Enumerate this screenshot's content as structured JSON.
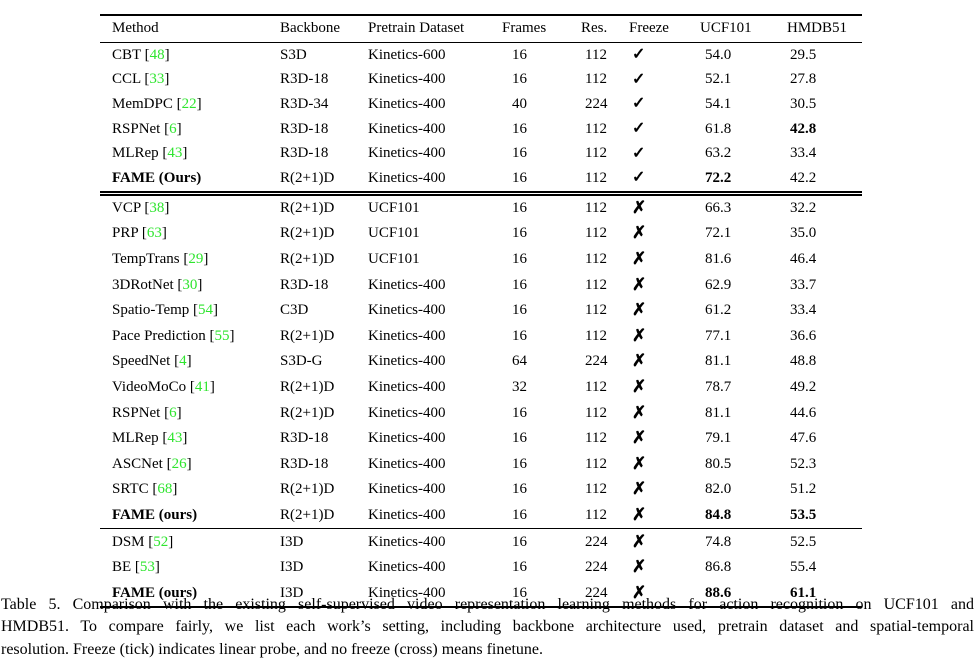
{
  "colors": {
    "citation_green": "#2ee52e",
    "text": "#000000",
    "rule": "#000000"
  },
  "table": {
    "columns": [
      "Method",
      "Backbone",
      "Pretrain Dataset",
      "Frames",
      "Res.",
      "Freeze",
      "UCF101",
      "HMDB51"
    ],
    "freeze_symbols": {
      "check": "✓",
      "cross": "✗"
    },
    "sections": [
      {
        "rows": [
          {
            "method": "CBT",
            "cite": "48",
            "method_bold": false,
            "backbone": "S3D",
            "pretrain": "Kinetics-600",
            "frames": "16",
            "res": "112",
            "freeze": "check",
            "ucf101": "54.0",
            "ucf101_bold": false,
            "hmdb51": "29.5",
            "hmdb51_bold": false
          },
          {
            "method": "CCL",
            "cite": "33",
            "method_bold": false,
            "backbone": "R3D-18",
            "pretrain": "Kinetics-400",
            "frames": "16",
            "res": "112",
            "freeze": "check",
            "ucf101": "52.1",
            "ucf101_bold": false,
            "hmdb51": "27.8",
            "hmdb51_bold": false
          },
          {
            "method": "MemDPC",
            "cite": "22",
            "method_bold": false,
            "backbone": "R3D-34",
            "pretrain": "Kinetics-400",
            "frames": "40",
            "res": "224",
            "freeze": "check",
            "ucf101": "54.1",
            "ucf101_bold": false,
            "hmdb51": "30.5",
            "hmdb51_bold": false
          },
          {
            "method": "RSPNet",
            "cite": "6",
            "method_bold": false,
            "backbone": "R3D-18",
            "pretrain": "Kinetics-400",
            "frames": "16",
            "res": "112",
            "freeze": "check",
            "ucf101": "61.8",
            "ucf101_bold": false,
            "hmdb51": "42.8",
            "hmdb51_bold": true
          },
          {
            "method": "MLRep",
            "cite": "43",
            "method_bold": false,
            "backbone": "R3D-18",
            "pretrain": "Kinetics-400",
            "frames": "16",
            "res": "112",
            "freeze": "check",
            "ucf101": "63.2",
            "ucf101_bold": false,
            "hmdb51": "33.4",
            "hmdb51_bold": false
          },
          {
            "method": "FAME (Ours)",
            "cite": "",
            "method_bold": true,
            "backbone": "R(2+1)D",
            "pretrain": "Kinetics-400",
            "frames": "16",
            "res": "112",
            "freeze": "check",
            "ucf101": "72.2",
            "ucf101_bold": true,
            "hmdb51": "42.2",
            "hmdb51_bold": false
          }
        ]
      },
      {
        "rows": [
          {
            "method": "VCP",
            "cite": "38",
            "method_bold": false,
            "backbone": "R(2+1)D",
            "pretrain": "UCF101",
            "frames": "16",
            "res": "112",
            "freeze": "cross",
            "ucf101": "66.3",
            "ucf101_bold": false,
            "hmdb51": "32.2",
            "hmdb51_bold": false
          },
          {
            "method": "PRP",
            "cite": "63",
            "method_bold": false,
            "backbone": "R(2+1)D",
            "pretrain": "UCF101",
            "frames": "16",
            "res": "112",
            "freeze": "cross",
            "ucf101": "72.1",
            "ucf101_bold": false,
            "hmdb51": "35.0",
            "hmdb51_bold": false
          },
          {
            "method": "TempTrans",
            "cite": "29",
            "method_bold": false,
            "backbone": "R(2+1)D",
            "pretrain": "UCF101",
            "frames": "16",
            "res": "112",
            "freeze": "cross",
            "ucf101": "81.6",
            "ucf101_bold": false,
            "hmdb51": "46.4",
            "hmdb51_bold": false
          },
          {
            "method": "3DRotNet",
            "cite": "30",
            "method_bold": false,
            "backbone": "R3D-18",
            "pretrain": "Kinetics-400",
            "frames": "16",
            "res": "112",
            "freeze": "cross",
            "ucf101": "62.9",
            "ucf101_bold": false,
            "hmdb51": "33.7",
            "hmdb51_bold": false
          },
          {
            "method": "Spatio-Temp",
            "cite": "54",
            "method_bold": false,
            "backbone": "C3D",
            "pretrain": "Kinetics-400",
            "frames": "16",
            "res": "112",
            "freeze": "cross",
            "ucf101": "61.2",
            "ucf101_bold": false,
            "hmdb51": "33.4",
            "hmdb51_bold": false
          },
          {
            "method": "Pace Prediction",
            "cite": "55",
            "method_bold": false,
            "backbone": "R(2+1)D",
            "pretrain": "Kinetics-400",
            "frames": "16",
            "res": "112",
            "freeze": "cross",
            "ucf101": "77.1",
            "ucf101_bold": false,
            "hmdb51": "36.6",
            "hmdb51_bold": false
          },
          {
            "method": "SpeedNet",
            "cite": "4",
            "method_bold": false,
            "backbone": "S3D-G",
            "pretrain": "Kinetics-400",
            "frames": "64",
            "res": "224",
            "freeze": "cross",
            "ucf101": "81.1",
            "ucf101_bold": false,
            "hmdb51": "48.8",
            "hmdb51_bold": false
          },
          {
            "method": "VideoMoCo",
            "cite": "41",
            "method_bold": false,
            "backbone": "R(2+1)D",
            "pretrain": "Kinetics-400",
            "frames": "32",
            "res": "112",
            "freeze": "cross",
            "ucf101": "78.7",
            "ucf101_bold": false,
            "hmdb51": "49.2",
            "hmdb51_bold": false
          },
          {
            "method": "RSPNet",
            "cite": "6",
            "method_bold": false,
            "backbone": "R(2+1)D",
            "pretrain": "Kinetics-400",
            "frames": "16",
            "res": "112",
            "freeze": "cross",
            "ucf101": "81.1",
            "ucf101_bold": false,
            "hmdb51": "44.6",
            "hmdb51_bold": false
          },
          {
            "method": "MLRep",
            "cite": "43",
            "method_bold": false,
            "backbone": "R3D-18",
            "pretrain": "Kinetics-400",
            "frames": "16",
            "res": "112",
            "freeze": "cross",
            "ucf101": "79.1",
            "ucf101_bold": false,
            "hmdb51": "47.6",
            "hmdb51_bold": false
          },
          {
            "method": "ASCNet",
            "cite": "26",
            "method_bold": false,
            "backbone": "R3D-18",
            "pretrain": "Kinetics-400",
            "frames": "16",
            "res": "112",
            "freeze": "cross",
            "ucf101": "80.5",
            "ucf101_bold": false,
            "hmdb51": "52.3",
            "hmdb51_bold": false
          },
          {
            "method": "SRTC",
            "cite": "68",
            "method_bold": false,
            "backbone": "R(2+1)D",
            "pretrain": "Kinetics-400",
            "frames": "16",
            "res": "112",
            "freeze": "cross",
            "ucf101": "82.0",
            "ucf101_bold": false,
            "hmdb51": "51.2",
            "hmdb51_bold": false
          },
          {
            "method": "FAME (ours)",
            "cite": "",
            "method_bold": true,
            "backbone": "R(2+1)D",
            "pretrain": "Kinetics-400",
            "frames": "16",
            "res": "112",
            "freeze": "cross",
            "ucf101": "84.8",
            "ucf101_bold": true,
            "hmdb51": "53.5",
            "hmdb51_bold": true
          }
        ]
      },
      {
        "rows": [
          {
            "method": "DSM",
            "cite": "52",
            "method_bold": false,
            "backbone": "I3D",
            "pretrain": "Kinetics-400",
            "frames": "16",
            "res": "224",
            "freeze": "cross",
            "ucf101": "74.8",
            "ucf101_bold": false,
            "hmdb51": "52.5",
            "hmdb51_bold": false
          },
          {
            "method": "BE",
            "cite": "53",
            "method_bold": false,
            "backbone": "I3D",
            "pretrain": "Kinetics-400",
            "frames": "16",
            "res": "224",
            "freeze": "cross",
            "ucf101": "86.8",
            "ucf101_bold": false,
            "hmdb51": "55.4",
            "hmdb51_bold": false
          },
          {
            "method": "FAME (ours)",
            "cite": "",
            "method_bold": true,
            "backbone": "I3D",
            "pretrain": "Kinetics-400",
            "frames": "16",
            "res": "224",
            "freeze": "cross",
            "ucf101": "88.6",
            "ucf101_bold": true,
            "hmdb51": "61.1",
            "hmdb51_bold": true
          }
        ]
      }
    ]
  },
  "caption": {
    "lines": [
      "Table 5.  Comparison with the existing self-supervised video representation learning methods for action recognition on UCF101 and",
      "HMDB51.  To compare fairly, we list each work’s setting, including backbone architecture used, pretrain dataset and spatial-temporal",
      "resolution. Freeze (tick) indicates linear probe, and no freeze (cross) means finetune."
    ]
  }
}
